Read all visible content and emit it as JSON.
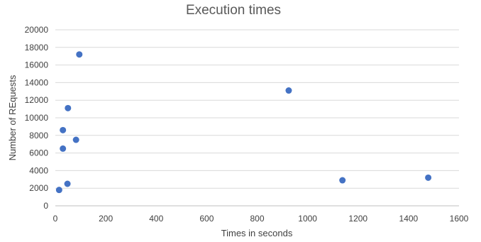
{
  "chart_data": {
    "type": "scatter",
    "title": "Execution times",
    "xlabel": "Times in seconds",
    "ylabel": "Number of REquests",
    "xlim": [
      0,
      1600
    ],
    "ylim": [
      0,
      20000
    ],
    "x_ticks": [
      0,
      200,
      400,
      600,
      800,
      1000,
      1200,
      1400,
      1600
    ],
    "y_ticks": [
      0,
      2000,
      4000,
      6000,
      8000,
      10000,
      12000,
      14000,
      16000,
      18000,
      20000
    ],
    "grid": "horizontal",
    "marker_color": "#4472C4",
    "points": [
      {
        "x": 15,
        "y": 1800
      },
      {
        "x": 30,
        "y": 6500
      },
      {
        "x": 30,
        "y": 8600
      },
      {
        "x": 48,
        "y": 2500
      },
      {
        "x": 50,
        "y": 11100
      },
      {
        "x": 82,
        "y": 7500
      },
      {
        "x": 95,
        "y": 17200
      },
      {
        "x": 925,
        "y": 13100
      },
      {
        "x": 1138,
        "y": 2900
      },
      {
        "x": 1478,
        "y": 3200
      }
    ]
  }
}
